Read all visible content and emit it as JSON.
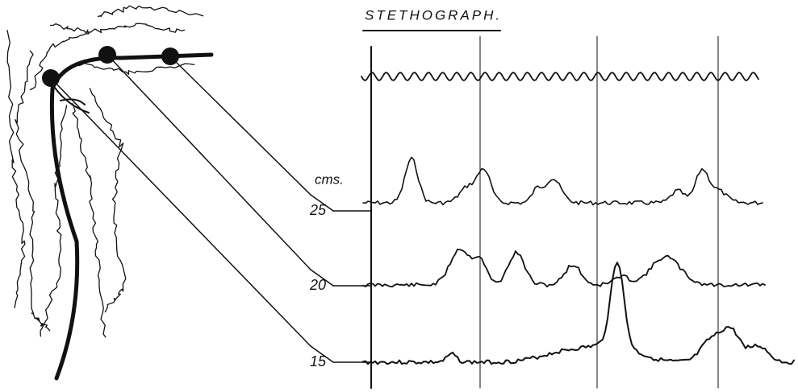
{
  "title": "STETHOGRAPH.",
  "unit_label": "cms.",
  "scale_labels": [
    "25",
    "20",
    "15"
  ]
}
